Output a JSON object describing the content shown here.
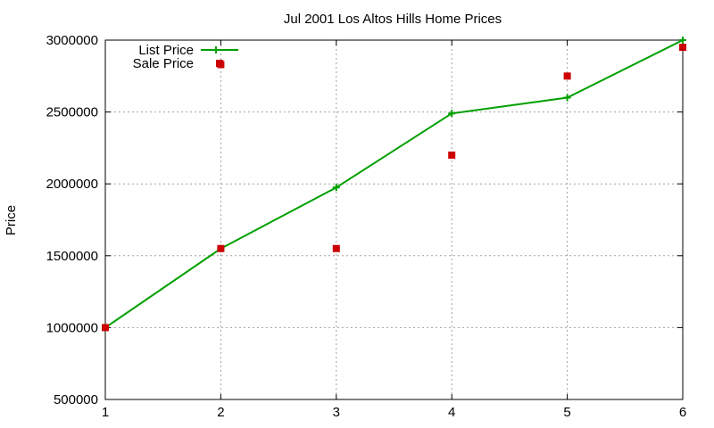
{
  "chart_data": {
    "type": "line",
    "title": "Jul 2001 Los Altos Hills Home Prices",
    "xlabel": "",
    "ylabel": "Price",
    "x": [
      1,
      2,
      3,
      4,
      5,
      6
    ],
    "xlim": [
      1,
      6
    ],
    "ylim": [
      500000,
      3000000
    ],
    "x_ticks": [
      "1",
      "2",
      "3",
      "4",
      "5",
      "6"
    ],
    "y_ticks": [
      "500000",
      "1000000",
      "1500000",
      "2000000",
      "2500000",
      "3000000"
    ],
    "grid": true,
    "legend_position": "top-left",
    "series": [
      {
        "name": "List Price",
        "style": "line-with-plus-markers",
        "color": "#00a000",
        "values": [
          1000000,
          1550000,
          1975000,
          2490000,
          2600000,
          3000000
        ]
      },
      {
        "name": "Sale Price",
        "style": "square-markers",
        "color": "#cc0000",
        "values": [
          1000000,
          2830000,
          1550000,
          2200000,
          2750000,
          2950000
        ],
        "x": [
          1,
          2,
          3,
          4,
          5,
          6
        ],
        "extra_points": [
          {
            "x": 2,
            "y": 1550000
          }
        ]
      }
    ]
  }
}
